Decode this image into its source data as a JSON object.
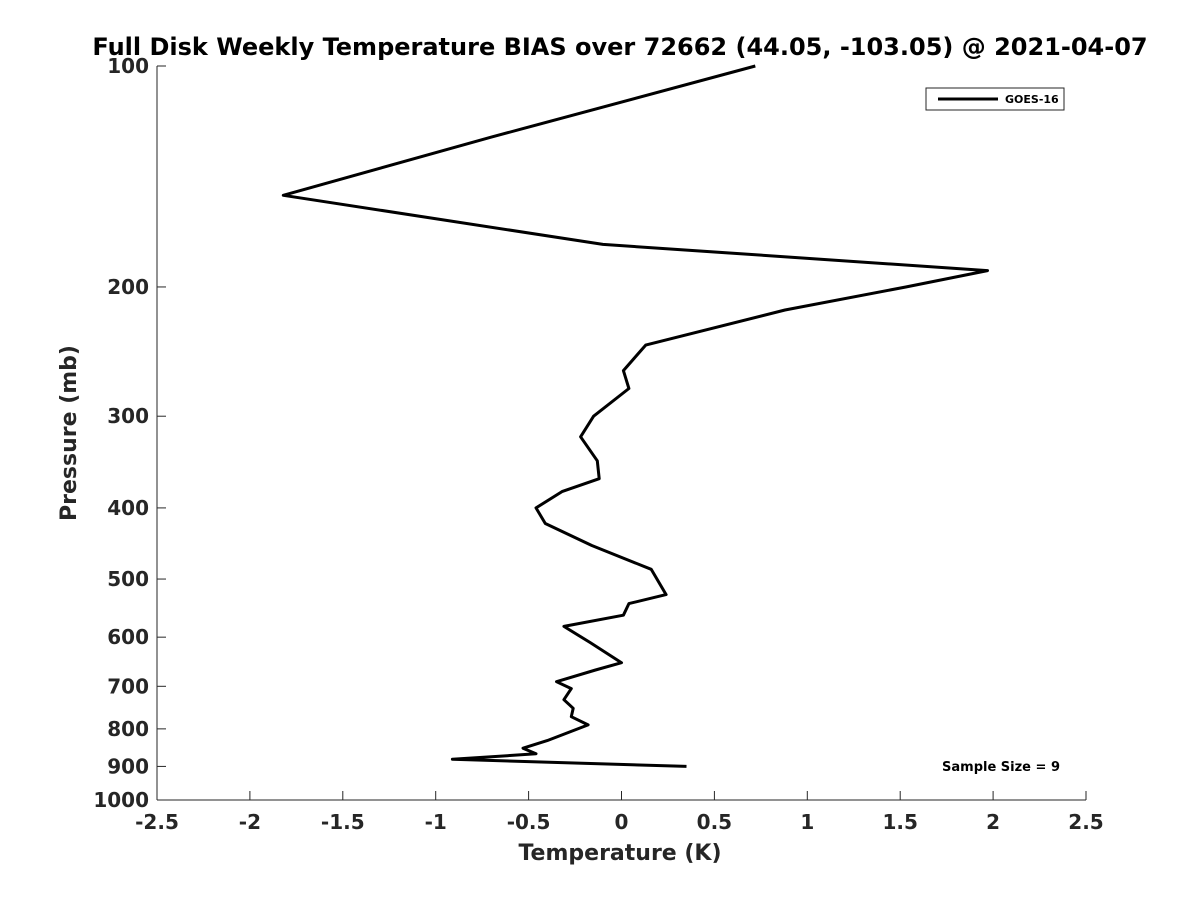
{
  "chart_data": {
    "type": "line",
    "title": "Full Disk Weekly Temperature BIAS over 72662 (44.05, -103.05) @ 2021-04-07",
    "xlabel": "Temperature (K)",
    "ylabel": "Pressure (mb)",
    "xlim": [
      -2.5,
      2.5
    ],
    "ylim": [
      100,
      1000
    ],
    "y_scale": "log",
    "y_reversed": true,
    "grid": false,
    "x_ticks": [
      -2.5,
      -2,
      -1.5,
      -1,
      -0.5,
      0,
      0.5,
      1,
      1.5,
      2,
      2.5
    ],
    "x_tick_labels": [
      "-2.5",
      "-2",
      "-1.5",
      "-1",
      "-0.5",
      "0",
      "0.5",
      "1",
      "1.5",
      "2",
      "2.5"
    ],
    "y_ticks": [
      100,
      200,
      300,
      400,
      500,
      600,
      700,
      800,
      900,
      1000
    ],
    "y_tick_labels": [
      "100",
      "200",
      "300",
      "400",
      "500",
      "600",
      "700",
      "800",
      "900",
      "1000"
    ],
    "legend": {
      "position": "top-right",
      "entries": [
        "GOES-16"
      ]
    },
    "annotations": [
      {
        "text": "Sample Size = 9",
        "position": "bottom-right"
      }
    ],
    "series": [
      {
        "name": "GOES-16",
        "color": "#000000",
        "points": [
          {
            "x": 0.72,
            "y": 100
          },
          {
            "x": -0.7,
            "y": 125
          },
          {
            "x": -1.82,
            "y": 150
          },
          {
            "x": -0.1,
            "y": 175
          },
          {
            "x": 1.97,
            "y": 190
          },
          {
            "x": 1.53,
            "y": 200
          },
          {
            "x": 0.88,
            "y": 215
          },
          {
            "x": 0.13,
            "y": 240
          },
          {
            "x": 0.01,
            "y": 260
          },
          {
            "x": 0.04,
            "y": 275
          },
          {
            "x": -0.15,
            "y": 300
          },
          {
            "x": -0.22,
            "y": 320
          },
          {
            "x": -0.13,
            "y": 345
          },
          {
            "x": -0.12,
            "y": 365
          },
          {
            "x": -0.32,
            "y": 380
          },
          {
            "x": -0.46,
            "y": 400
          },
          {
            "x": -0.41,
            "y": 420
          },
          {
            "x": -0.16,
            "y": 450
          },
          {
            "x": 0.16,
            "y": 485
          },
          {
            "x": 0.24,
            "y": 525
          },
          {
            "x": 0.04,
            "y": 540
          },
          {
            "x": 0.01,
            "y": 560
          },
          {
            "x": -0.31,
            "y": 580
          },
          {
            "x": -0.17,
            "y": 610
          },
          {
            "x": 0,
            "y": 650
          },
          {
            "x": -0.14,
            "y": 665
          },
          {
            "x": -0.35,
            "y": 690
          },
          {
            "x": -0.27,
            "y": 705
          },
          {
            "x": -0.31,
            "y": 730
          },
          {
            "x": -0.26,
            "y": 750
          },
          {
            "x": -0.27,
            "y": 770
          },
          {
            "x": -0.18,
            "y": 790
          },
          {
            "x": -0.4,
            "y": 830
          },
          {
            "x": -0.53,
            "y": 850
          },
          {
            "x": -0.46,
            "y": 865
          },
          {
            "x": -0.91,
            "y": 880
          },
          {
            "x": 0.35,
            "y": 900
          }
        ]
      }
    ]
  }
}
